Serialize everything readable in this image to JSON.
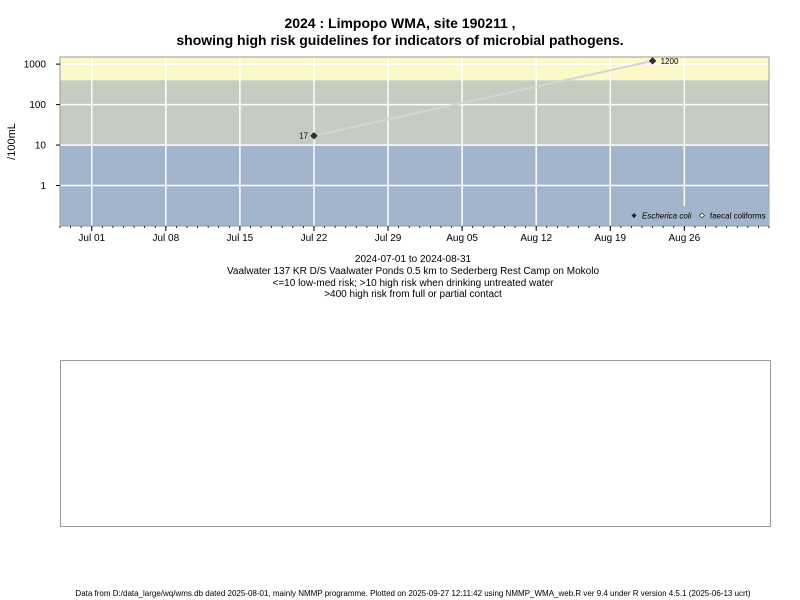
{
  "title_line1": "2024 : Limpopo WMA, site 190211 ,",
  "title_line2": "showing high risk guidelines for indicators of microbial pathogens.",
  "caption": {
    "date_range": "2024-07-01 to 2024-08-31",
    "site_description": "Vaalwater 137 KR D/S Vaalwater Ponds 0.5 km to Sederberg Rest Camp on Mokolo",
    "risk_note_1": "<=10 low-med risk; >10 high risk when drinking untreated water",
    "risk_note_2": ">400 high risk from full or partial contact"
  },
  "footer": "Data from D:/data_large/wq/wms.db dated 2025-08-01, mainly NMMP programme. Plotted on 2025-09-27 12:11:42 using NMMP_WMA_web.R ver 9.4 under R version 4.5.1 (2025-06-13 ucrt)",
  "colors": {
    "band_low": "#a3b5cc",
    "band_high": "#c4cdc0",
    "band_contact": "#fdf8c8",
    "line": "#d4d4d4",
    "grid": "#ffffff",
    "point": "#333333"
  },
  "chart_data": {
    "type": "line",
    "xlabel": "",
    "ylabel": "/100mL",
    "y_scale": "log",
    "ylim": [
      0.1,
      1500
    ],
    "xlim": [
      "2024-06-28",
      "2024-09-03"
    ],
    "yticks": [
      1,
      10,
      100,
      1000
    ],
    "ytick_labels": [
      "1",
      "10",
      "100",
      "1000"
    ],
    "xticks": [
      "2024-07-01",
      "2024-07-08",
      "2024-07-15",
      "2024-07-22",
      "2024-07-29",
      "2024-08-05",
      "2024-08-12",
      "2024-08-19",
      "2024-08-26"
    ],
    "xtick_labels": [
      "Jul 01",
      "Jul 08",
      "Jul 15",
      "Jul 22",
      "Jul 29",
      "Aug 05",
      "Aug 12",
      "Aug 19",
      "Aug 26"
    ],
    "risk_bands": [
      {
        "from": 0.1,
        "to": 10,
        "color": "#a3b5cc"
      },
      {
        "from": 10,
        "to": 400,
        "color": "#c4cdc0"
      },
      {
        "from": 400,
        "to": 1500,
        "color": "#fdf8c8"
      }
    ],
    "series": [
      {
        "name": "Escherica coli",
        "marker": "filled-diamond",
        "x": [
          "2024-07-22",
          "2024-08-23"
        ],
        "y": [
          17,
          1200
        ],
        "point_labels": [
          "17",
          "1200"
        ]
      },
      {
        "name": "faecal coliforms",
        "marker": "open-diamond",
        "x": [],
        "y": []
      }
    ],
    "legend_position": "bottom-right",
    "grid": true
  }
}
